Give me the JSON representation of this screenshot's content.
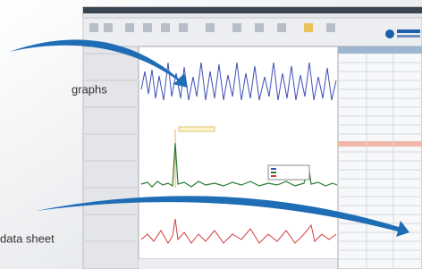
{
  "annotations": {
    "graphs": "graphs",
    "data_sheet": "data sheet"
  }
}
